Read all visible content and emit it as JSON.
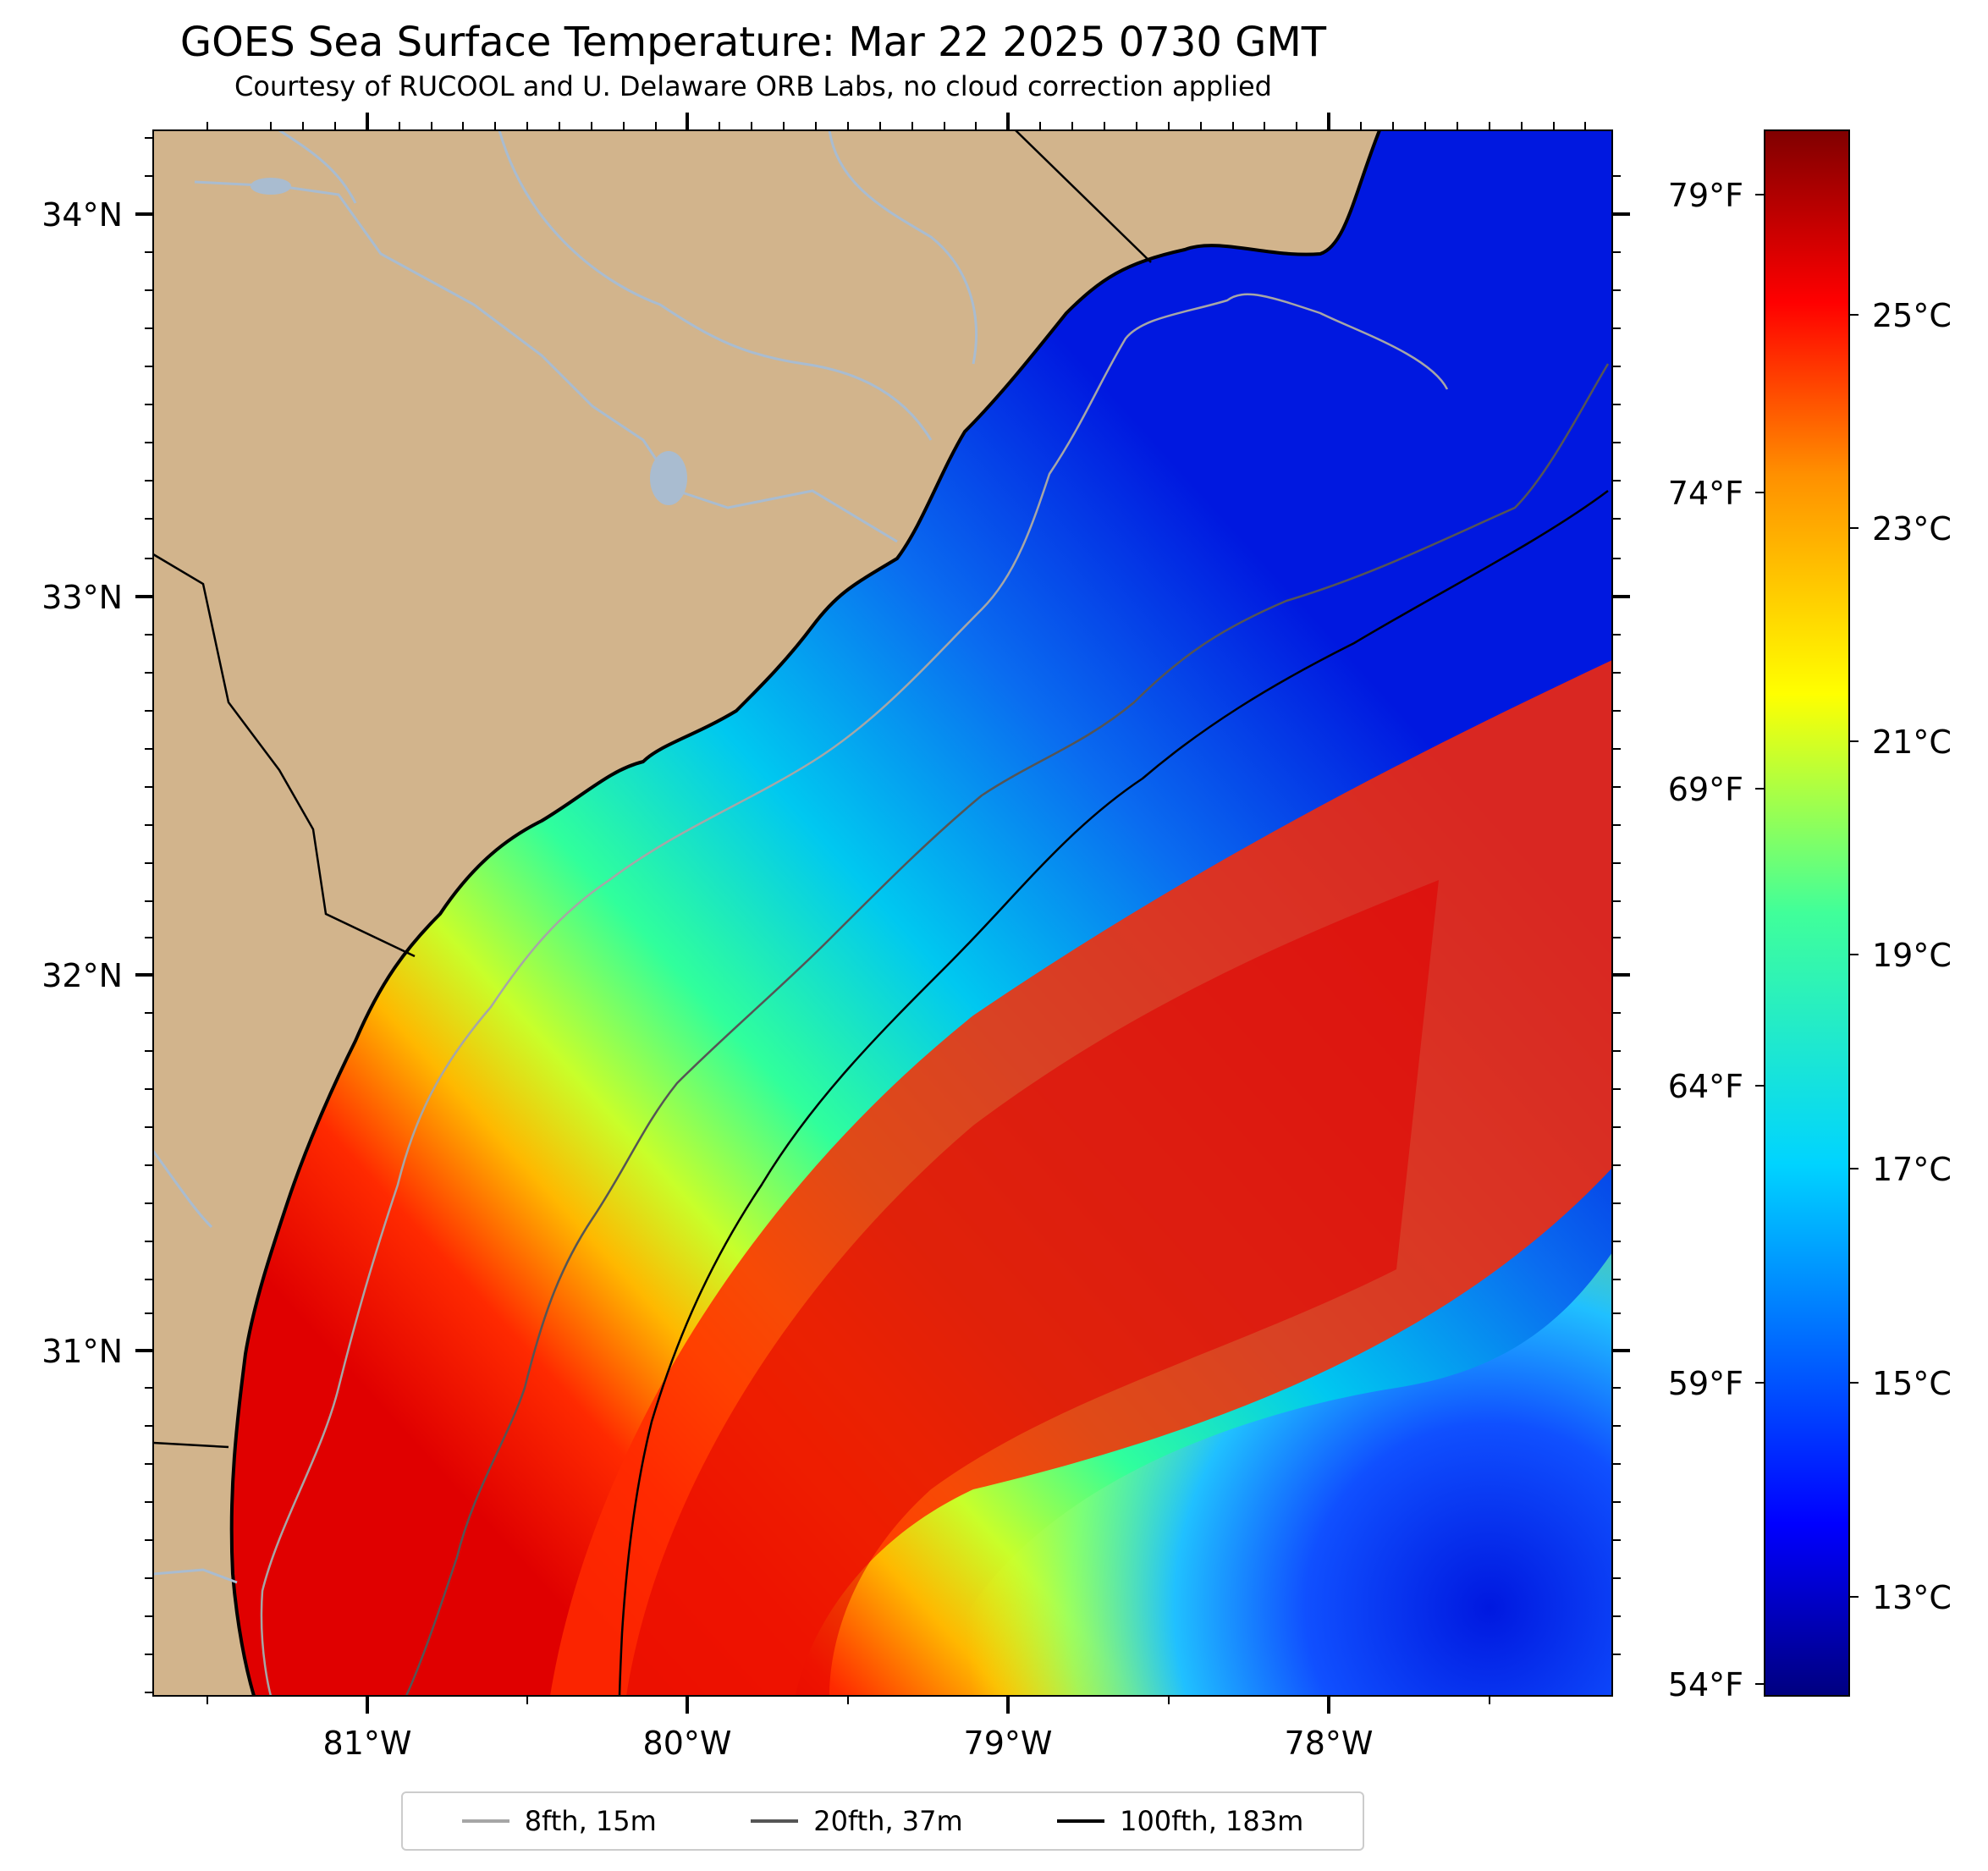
{
  "title": "GOES Sea Surface Temperature: Mar 22 2025 0730 GMT",
  "subtitle": "Courtesy of RUCOOL and U. Delaware ORB Labs, no cloud correction applied",
  "map": {
    "lat_labels": [
      "34°N",
      "33°N",
      "32°N",
      "31°N"
    ],
    "lon_labels": [
      "81°W",
      "80°W",
      "79°W",
      "78°W"
    ]
  },
  "colorbar": {
    "celsius_labels": [
      "25°C",
      "23°C",
      "21°C",
      "19°C",
      "17°C",
      "15°C",
      "13°C"
    ],
    "fahrenheit_labels": [
      "79°F",
      "74°F",
      "69°F",
      "64°F",
      "59°F",
      "54°F"
    ]
  },
  "legend": {
    "items": [
      {
        "label": "8fth, 15m",
        "color": "#a6a6a6"
      },
      {
        "label": "20fth, 37m",
        "color": "#555555"
      },
      {
        "label": "100fth, 183m",
        "color": "#000000"
      }
    ]
  },
  "colors": {
    "land": "#d2b48c",
    "rivers": "#a9bcd0",
    "coast": "#000000"
  }
}
